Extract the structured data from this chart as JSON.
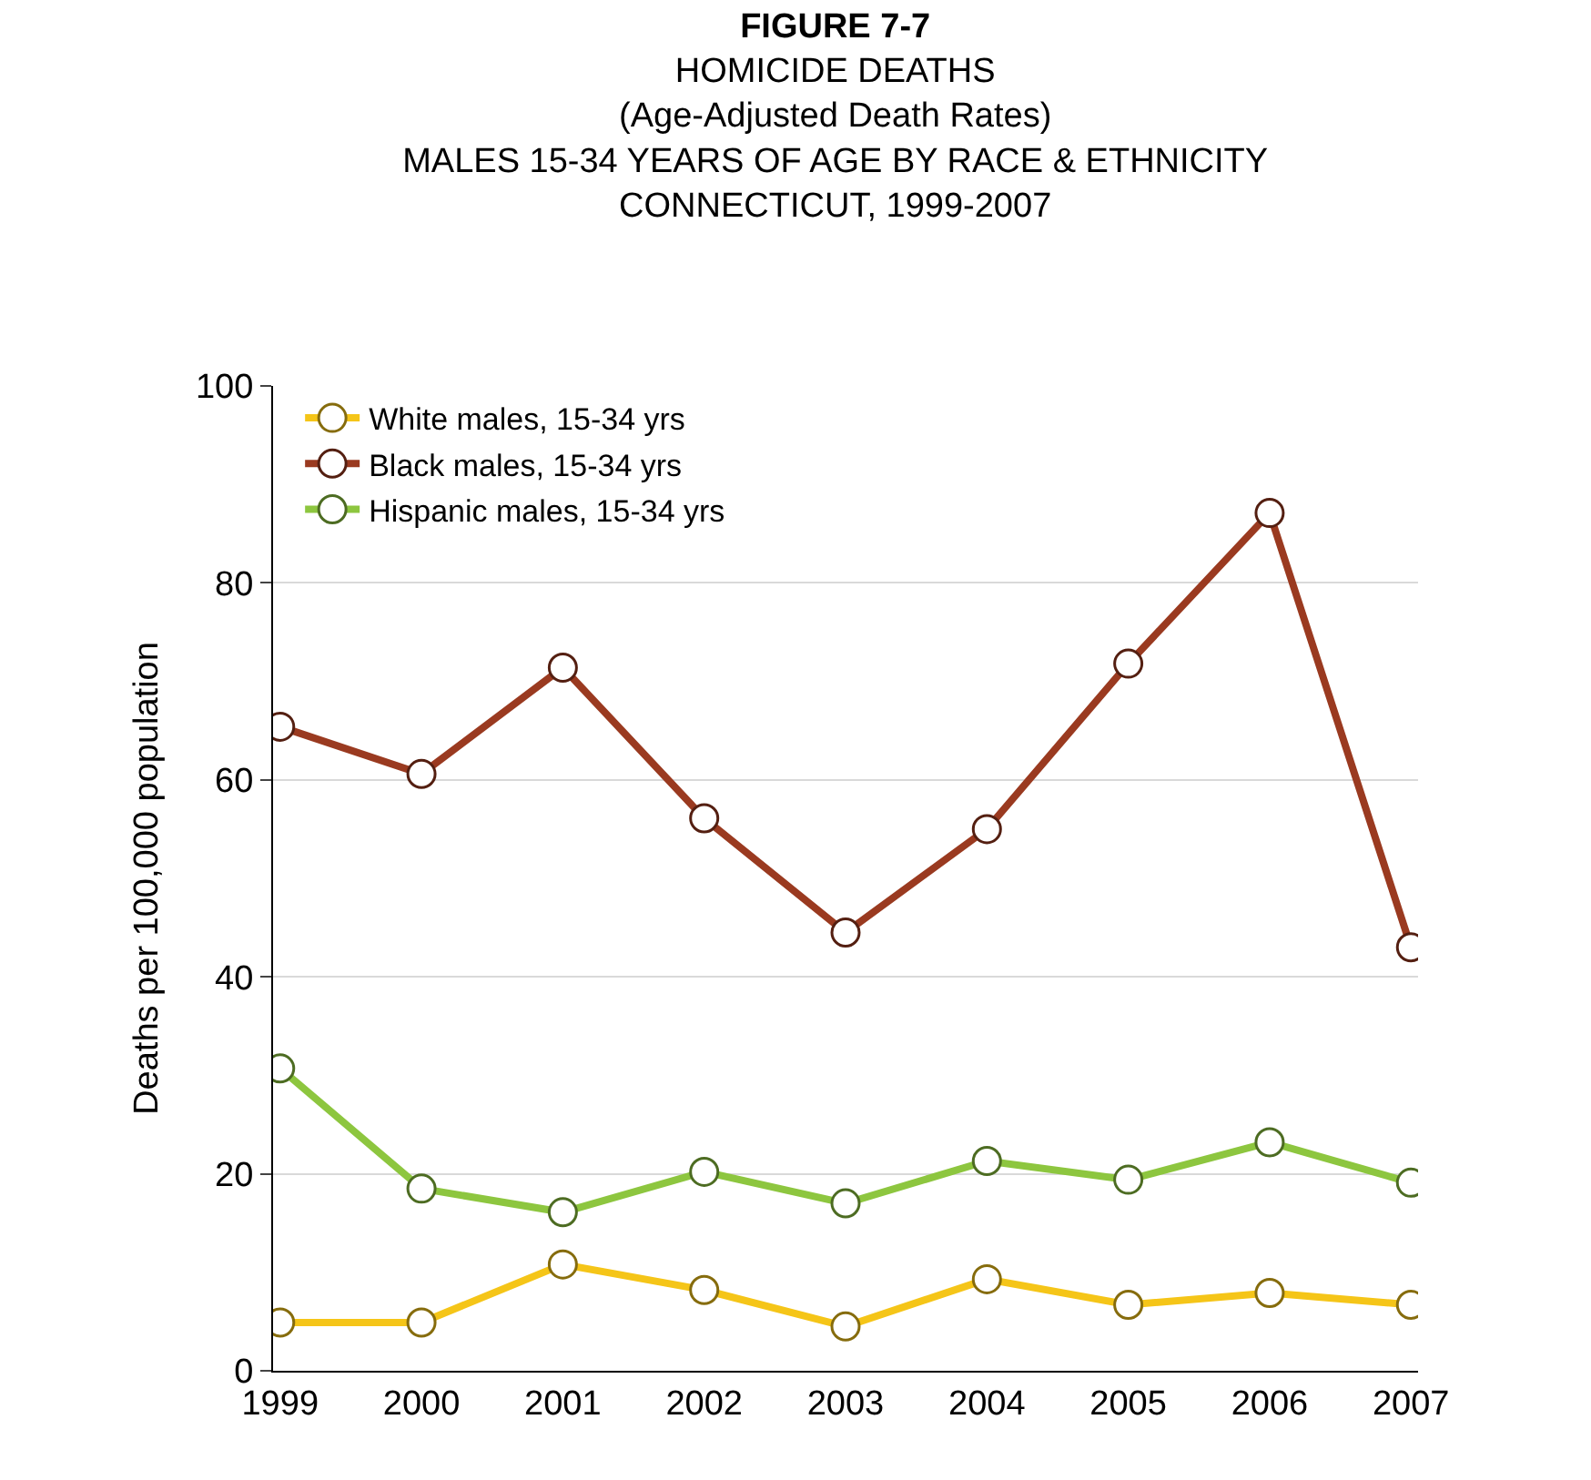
{
  "chart_data": {
    "type": "line",
    "title": "FIGURE 7-7",
    "subtitle": "HOMICIDE DEATHS\n(Age-Adjusted Death Rates)\nMALES 15-34 YEARS OF AGE BY RACE & ETHNICITY\nCONNECTICUT, 1999-2007",
    "ylabel": "Deaths per 100,000 population",
    "categories": [
      "1999",
      "2000",
      "2001",
      "2002",
      "2003",
      "2004",
      "2005",
      "2006",
      "2007"
    ],
    "series": [
      {
        "name": "White males, 15-34 yrs",
        "color": "#f5c518",
        "values": [
          4.9,
          4.9,
          10.8,
          8.2,
          4.5,
          9.3,
          6.7,
          7.9,
          6.7
        ]
      },
      {
        "name": "Black males, 15-34 yrs",
        "color": "#9a3a20",
        "values": [
          65.4,
          60.6,
          71.4,
          56.1,
          44.5,
          55.0,
          71.8,
          87.1,
          43.0
        ]
      },
      {
        "name": "Hispanic males, 15-34 yrs",
        "color": "#8dc63f",
        "values": [
          30.7,
          18.5,
          16.1,
          20.2,
          17.0,
          21.3,
          19.4,
          23.2,
          19.1
        ]
      }
    ],
    "ylim": [
      0,
      100
    ],
    "yticks": [
      0,
      20,
      40,
      60,
      80,
      100
    ],
    "grid": "y",
    "legend": "top left",
    "marker": "circle",
    "line_style": "solid"
  }
}
